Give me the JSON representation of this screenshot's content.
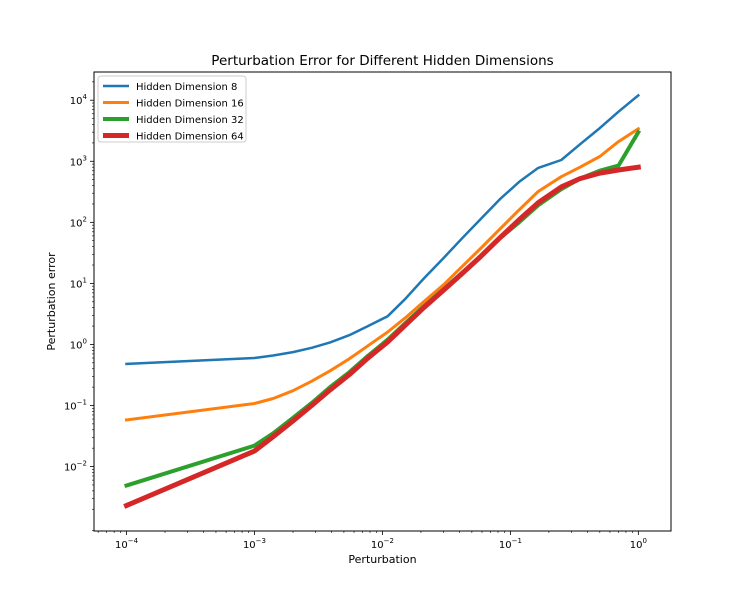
{
  "chart_data": {
    "type": "line",
    "title": "Perturbation Error for Different Hidden Dimensions",
    "xlabel": "Perturbation",
    "ylabel": "Perturbation error",
    "xscale": "log",
    "yscale": "log",
    "xlim": [
      5.57e-05,
      1.8
    ],
    "ylim": [
      0.00088,
      29000
    ],
    "grid": false,
    "legend_position": "top-left",
    "x_ticks": [
      {
        "value": 0.0001,
        "base": "10",
        "exp": "−4"
      },
      {
        "value": 0.001,
        "base": "10",
        "exp": "−3"
      },
      {
        "value": 0.01,
        "base": "10",
        "exp": "−2"
      },
      {
        "value": 0.1,
        "base": "10",
        "exp": "−1"
      },
      {
        "value": 1,
        "base": "10",
        "exp": "0"
      }
    ],
    "y_ticks": [
      {
        "value": 0.01,
        "base": "10",
        "exp": "−2"
      },
      {
        "value": 0.1,
        "base": "10",
        "exp": "−1"
      },
      {
        "value": 1,
        "base": "10",
        "exp": "0"
      },
      {
        "value": 10,
        "base": "10",
        "exp": "1"
      },
      {
        "value": 100,
        "base": "10",
        "exp": "2"
      },
      {
        "value": 1000,
        "base": "10",
        "exp": "3"
      },
      {
        "value": 10000,
        "base": "10",
        "exp": "4"
      }
    ],
    "series": [
      {
        "name": "Hidden Dimension 8",
        "color": "#1f77b4",
        "width": 2.5,
        "x": [
          0.0001,
          0.001,
          0.0014,
          0.002,
          0.0028,
          0.0039,
          0.0055,
          0.0077,
          0.011,
          0.015,
          0.021,
          0.03,
          0.042,
          0.059,
          0.083,
          0.117,
          0.165,
          0.25,
          0.35,
          0.5,
          0.7,
          1.0
        ],
        "y": [
          0.48,
          0.6,
          0.66,
          0.75,
          0.88,
          1.08,
          1.42,
          2.0,
          2.9,
          5.5,
          12,
          26,
          55,
          115,
          240,
          460,
          780,
          1050,
          1900,
          3500,
          6500,
          12000
        ]
      },
      {
        "name": "Hidden Dimension 16",
        "color": "#ff7f0e",
        "width": 3,
        "x": [
          0.0001,
          0.001,
          0.0014,
          0.002,
          0.0028,
          0.0039,
          0.0055,
          0.0077,
          0.011,
          0.015,
          0.021,
          0.03,
          0.042,
          0.059,
          0.083,
          0.117,
          0.165,
          0.25,
          0.35,
          0.5,
          0.7,
          1.0
        ],
        "y": [
          0.058,
          0.108,
          0.13,
          0.175,
          0.25,
          0.37,
          0.58,
          0.95,
          1.6,
          2.7,
          5,
          9.5,
          19,
          38,
          78,
          160,
          320,
          560,
          800,
          1200,
          2100,
          3400
        ]
      },
      {
        "name": "Hidden Dimension 32",
        "color": "#2ca02c",
        "width": 4,
        "x": [
          0.0001,
          0.001,
          0.0014,
          0.002,
          0.0028,
          0.0039,
          0.0055,
          0.0077,
          0.011,
          0.015,
          0.021,
          0.03,
          0.042,
          0.059,
          0.083,
          0.117,
          0.165,
          0.25,
          0.35,
          0.5,
          0.7,
          1.0
        ],
        "y": [
          0.0049,
          0.022,
          0.035,
          0.063,
          0.11,
          0.2,
          0.35,
          0.65,
          1.2,
          2.2,
          4.2,
          8,
          15,
          28,
          55,
          100,
          190,
          350,
          520,
          700,
          850,
          3000
        ]
      },
      {
        "name": "Hidden Dimension 64",
        "color": "#d62728",
        "width": 5,
        "x": [
          0.0001,
          0.001,
          0.0014,
          0.002,
          0.0028,
          0.0039,
          0.0055,
          0.0077,
          0.011,
          0.015,
          0.021,
          0.03,
          0.042,
          0.059,
          0.083,
          0.117,
          0.165,
          0.25,
          0.35,
          0.5,
          0.7,
          1.0
        ],
        "y": [
          0.0023,
          0.018,
          0.031,
          0.056,
          0.1,
          0.18,
          0.32,
          0.6,
          1.1,
          2.05,
          4,
          7.7,
          14.5,
          28,
          56,
          110,
          210,
          380,
          520,
          640,
          720,
          800
        ]
      }
    ]
  }
}
